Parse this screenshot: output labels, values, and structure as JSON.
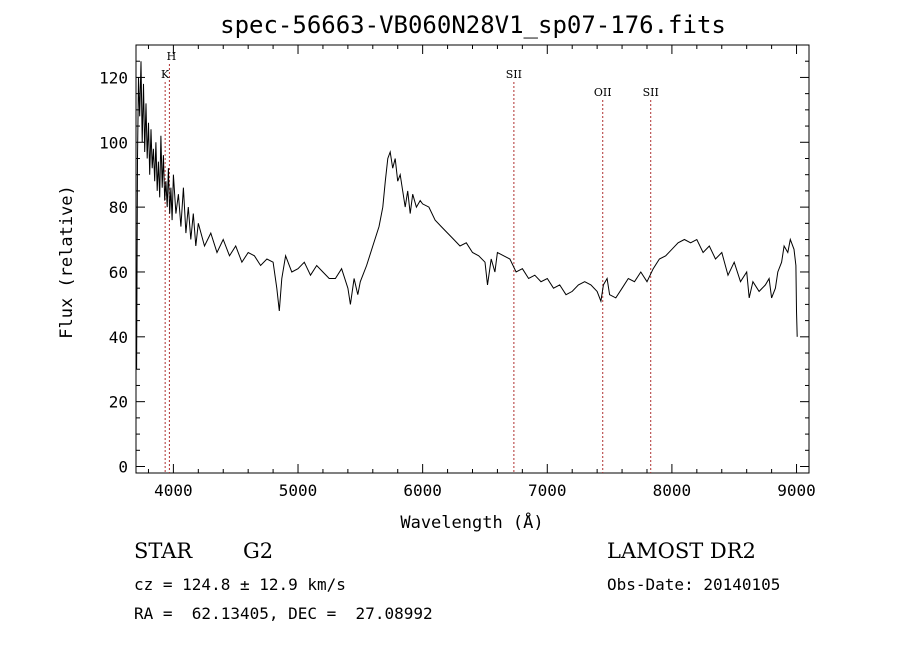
{
  "chart_data": {
    "type": "line",
    "title": "spec-56663-VB060N28V1_sp07-176.fits",
    "xlabel": "Wavelength (Å)",
    "ylabel": "Flux (relative)",
    "xlim": [
      3700,
      9100
    ],
    "ylim": [
      -2,
      130
    ],
    "x_ticks": [
      4000,
      5000,
      6000,
      7000,
      8000,
      9000
    ],
    "y_ticks": [
      0,
      20,
      40,
      60,
      80,
      100,
      120
    ],
    "grid": false,
    "line_color": "#000000",
    "series": [
      {
        "x": [
          3705,
          3712,
          3720,
          3730,
          3740,
          3750,
          3760,
          3770,
          3780,
          3790,
          3800,
          3810,
          3820,
          3830,
          3840,
          3850,
          3860,
          3870,
          3880,
          3890,
          3900,
          3910,
          3920,
          3930,
          3940,
          3950,
          3960,
          3970,
          3980,
          3990,
          4000,
          4020,
          4040,
          4060,
          4080,
          4100,
          4120,
          4140,
          4160,
          4180,
          4200,
          4250,
          4300,
          4350,
          4400,
          4450,
          4500,
          4550,
          4600,
          4650,
          4700,
          4750,
          4800,
          4830,
          4850,
          4870,
          4900,
          4950,
          5000,
          5050,
          5100,
          5150,
          5200,
          5250,
          5300,
          5350,
          5400,
          5420,
          5450,
          5480,
          5500,
          5550,
          5600,
          5650,
          5680,
          5700,
          5720,
          5740,
          5760,
          5780,
          5800,
          5820,
          5840,
          5860,
          5880,
          5900,
          5920,
          5950,
          5980,
          6000,
          6050,
          6100,
          6150,
          6200,
          6250,
          6300,
          6350,
          6400,
          6450,
          6500,
          6520,
          6550,
          6580,
          6600,
          6650,
          6700,
          6750,
          6800,
          6850,
          6900,
          6950,
          7000,
          7050,
          7100,
          7150,
          7200,
          7250,
          7300,
          7350,
          7400,
          7430,
          7450,
          7480,
          7500,
          7550,
          7600,
          7650,
          7700,
          7750,
          7800,
          7850,
          7900,
          7950,
          8000,
          8050,
          8100,
          8150,
          8200,
          8250,
          8300,
          8350,
          8400,
          8450,
          8500,
          8550,
          8600,
          8620,
          8650,
          8700,
          8750,
          8780,
          8800,
          8830,
          8850,
          8880,
          8900,
          8930,
          8950,
          8980,
          8995,
          9000,
          9005
        ],
        "y": [
          30,
          95,
          120,
          108,
          125,
          100,
          118,
          97,
          112,
          95,
          106,
          90,
          104,
          92,
          98,
          88,
          100,
          85,
          94,
          83,
          102,
          86,
          96,
          82,
          88,
          80,
          92,
          78,
          86,
          76,
          90,
          78,
          84,
          74,
          86,
          72,
          80,
          70,
          78,
          68,
          75,
          68,
          72,
          66,
          70,
          65,
          68,
          63,
          66,
          65,
          62,
          64,
          63,
          55,
          48,
          58,
          65,
          60,
          61,
          63,
          59,
          62,
          60,
          58,
          58,
          61,
          55,
          50,
          58,
          53,
          57,
          62,
          68,
          74,
          80,
          88,
          95,
          97,
          92,
          95,
          88,
          90,
          85,
          80,
          85,
          78,
          84,
          80,
          82,
          81,
          80,
          76,
          74,
          72,
          70,
          68,
          69,
          66,
          65,
          63,
          56,
          64,
          60,
          66,
          65,
          64,
          60,
          61,
          58,
          59,
          57,
          58,
          55,
          56,
          53,
          54,
          56,
          57,
          56,
          54,
          51,
          56,
          58,
          53,
          52,
          55,
          58,
          57,
          60,
          57,
          61,
          64,
          65,
          67,
          69,
          70,
          69,
          70,
          66,
          68,
          64,
          66,
          59,
          63,
          57,
          60,
          52,
          57,
          54,
          56,
          58,
          52,
          55,
          60,
          63,
          68,
          66,
          70,
          67,
          62,
          48,
          40
        ]
      }
    ],
    "lines": [
      {
        "label": "H",
        "x": 3968
      },
      {
        "label": "K",
        "x": 3934
      },
      {
        "label": "SII",
        "x": 6732
      },
      {
        "label": "OII",
        "x": 7445
      },
      {
        "label": "SII",
        "x": 7830
      }
    ]
  },
  "info": {
    "object_class": "STAR",
    "subclass": "G2",
    "survey": "LAMOST DR2",
    "cz": "cz = 124.8 ± 12.9 km/s",
    "obs_date": "Obs-Date: 20140105",
    "coords": "RA =  62.13405, DEC =  27.08992"
  }
}
